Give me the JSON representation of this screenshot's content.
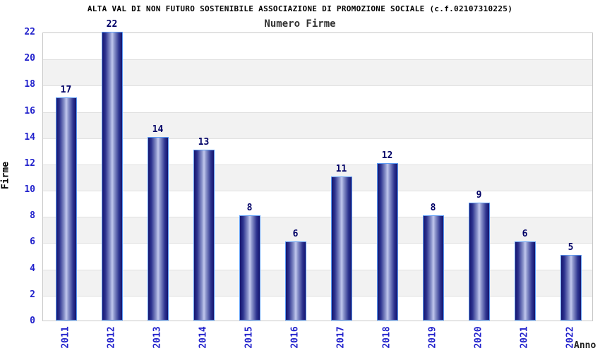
{
  "chart_data": {
    "type": "bar",
    "title": "ALTA VAL DI NON FUTURO SOSTENIBILE ASSOCIAZIONE DI PROMOZIONE SOCIALE (c.f.02107310225)",
    "subtitle": "Numero Firme",
    "xlabel": "Anno",
    "ylabel": "Firme",
    "categories": [
      "2011",
      "2012",
      "2013",
      "2014",
      "2015",
      "2016",
      "2017",
      "2018",
      "2019",
      "2020",
      "2021",
      "2022"
    ],
    "values": [
      17,
      22,
      14,
      13,
      8,
      6,
      11,
      12,
      8,
      9,
      6,
      5
    ],
    "ylim": [
      0,
      22
    ],
    "ytick_step": 2,
    "grid": "horizontal",
    "legend": "none",
    "colors": {
      "bar_dark": "#14146e",
      "bar_light": "#c2c8ee",
      "bar_border": "#5c9cf5",
      "value_label": "#000066",
      "tick_label": "#2222cc",
      "band": "#f2f2f2",
      "gridline": "#e0e0e0",
      "axis_border": "#c9c9c9",
      "title": "#000000",
      "subtitle": "#333333"
    }
  }
}
